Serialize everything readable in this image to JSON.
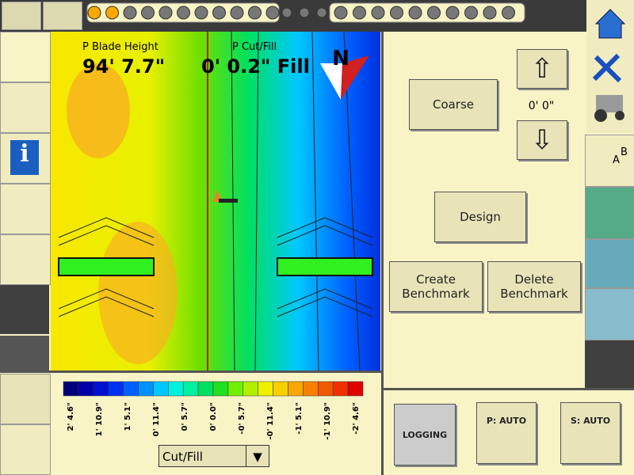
{
  "map": {
    "blade_label": "P Blade Height",
    "blade_value": "94' 7.7\"",
    "cutfill_label": "P Cut/Fill",
    "cutfill_value": "0' 0.2\" Fill",
    "north": "N"
  },
  "controls": {
    "coarse": "Coarse",
    "offset": "0' 0\"",
    "design": "Design",
    "create_benchmark": "Create Benchmark",
    "delete_benchmark": "Delete Benchmark"
  },
  "bottom": {
    "logging": "LOGGING",
    "p_auto": "P: AUTO",
    "s_auto": "S: AUTO",
    "dropdown": "Cut/Fill"
  },
  "sidebar": {
    "a": "A",
    "b": "B"
  },
  "legend": {
    "colors": [
      "#00007a",
      "#0000a8",
      "#0010d0",
      "#0030f0",
      "#0060ff",
      "#0090ff",
      "#00c8ff",
      "#00f0e0",
      "#00f0a0",
      "#00e060",
      "#20e020",
      "#70f000",
      "#b0f000",
      "#f0f000",
      "#f8d000",
      "#f8a800",
      "#f88000",
      "#f05800",
      "#f03000",
      "#e00000"
    ],
    "labels": [
      "2' 4.6\"",
      "1' 10.9\"",
      "1' 5.1\"",
      "0' 11.4\"",
      "0' 5.7\"",
      "0' 0.0\"",
      "-0' 5.7\"",
      "-0' 11.4\"",
      "-1' 5.1\"",
      "-1' 10.9\"",
      "-2' 4.6\""
    ]
  }
}
